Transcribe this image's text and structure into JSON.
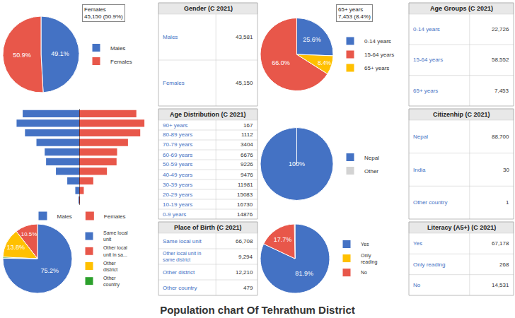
{
  "title": "Population chart Of Tehrathum District",
  "chart_data": [
    {
      "type": "pie",
      "categories": [
        "Males",
        "Females"
      ],
      "values": [
        49.1,
        50.9
      ],
      "value_labels": [
        "49.1%",
        "50.9%"
      ],
      "colors": [
        "#4472c4",
        "#e8574a"
      ],
      "legend": "right",
      "annotations": [
        "Females\n45,150 (50.9%)"
      ]
    },
    {
      "type": "table",
      "title": "Gender (C 2021)",
      "categories": [
        "Males",
        "Females"
      ],
      "values": [
        43581,
        45150
      ],
      "value_labels": [
        "43,581",
        "45,150"
      ]
    },
    {
      "type": "pie",
      "categories": [
        "0-14 years",
        "15-64 years",
        "65+ years"
      ],
      "values": [
        25.6,
        66.0,
        8.4
      ],
      "value_labels": [
        "25.6%",
        "66.0%",
        "8.4%"
      ],
      "colors": [
        "#4472c4",
        "#e8574a",
        "#ffc000"
      ],
      "legend": "right",
      "annotations": [
        "65+ years\n7,453 (8.4%)"
      ]
    },
    {
      "type": "table",
      "title": "Age Groups (C 2021)",
      "categories": [
        "0-14 years",
        "15-64 years",
        "65+ years"
      ],
      "values": [
        22726,
        58552,
        7453
      ],
      "value_labels": [
        "22,726",
        "58,552",
        "7,453"
      ]
    },
    {
      "type": "pyramid",
      "orientation": "horizontal",
      "categories": [
        "90+ years",
        "80-89 years",
        "70-79 years",
        "60-69 years",
        "50-59 years",
        "40-49 years",
        "30-39 years",
        "20-29 years",
        "10-19 years",
        "0-9 years"
      ],
      "series": [
        {
          "name": "Males",
          "color": "#4472c4",
          "values": [
            76,
            516,
            1567,
            3050,
            4340,
            4520,
            5600,
            7100,
            8200,
            7400
          ]
        },
        {
          "name": "Females",
          "color": "#e8574a",
          "values": [
            91,
            596,
            1837,
            3626,
            4886,
            4956,
            6381,
            7983,
            8530,
            7476
          ]
        }
      ],
      "xlim": [
        0,
        10000
      ],
      "xticks": [
        0,
        5000,
        10000
      ],
      "grid": false,
      "tick_labels": false,
      "legend": "bottom"
    },
    {
      "type": "table",
      "title": "Age Distribution (C 2021)",
      "categories": [
        "90+ years",
        "80-89 years",
        "70-79 years",
        "60-69 years",
        "50-59 years",
        "40-49 years",
        "30-39 years",
        "20-29 years",
        "10-19 years",
        "0-9 years"
      ],
      "values": [
        167,
        1112,
        3404,
        6676,
        9226,
        9476,
        11981,
        15083,
        16730,
        14876
      ]
    },
    {
      "type": "pie",
      "categories": [
        "Nepal",
        "Other"
      ],
      "values": [
        100,
        0
      ],
      "value_labels": [
        "100%",
        null
      ],
      "colors": [
        "#4472c4",
        "#d3d3d3"
      ],
      "legend": "right"
    },
    {
      "type": "table",
      "title": "Citizenhip (C 2021)",
      "categories": [
        "Nepal",
        "India",
        "Other country"
      ],
      "values": [
        88700,
        30,
        1
      ],
      "value_labels": [
        "88,700",
        "30",
        "1"
      ]
    },
    {
      "type": "pie",
      "categories": [
        "Same local\nunit",
        "Other local\nunit in sa...",
        "Other\ndistrict",
        "Other\ncountry"
      ],
      "values": [
        75.2,
        10.5,
        13.8,
        0.5
      ],
      "value_labels": [
        "75.2%",
        "10.5%",
        "13.8%",
        null
      ],
      "colors": [
        "#4472c4",
        "#e8574a",
        "#ffc000",
        "#2ca02c"
      ],
      "legend": "right"
    },
    {
      "type": "table",
      "title": "Place of Birth (C 2021)",
      "categories": [
        "Same local unit",
        "Other local unit in\nsame district",
        "Other district",
        "Other country"
      ],
      "values": [
        66708,
        9294,
        12210,
        479
      ],
      "value_labels": [
        "66,708",
        "9,294",
        "12,210",
        "479"
      ]
    },
    {
      "type": "pie",
      "categories": [
        "Yes",
        "Only\nreading",
        "No"
      ],
      "values": [
        81.9,
        0.3,
        17.7
      ],
      "value_labels": [
        "81.9%",
        null,
        "17.7%"
      ],
      "colors": [
        "#4472c4",
        "#ffc000",
        "#e8574a"
      ],
      "legend": "right"
    },
    {
      "type": "table",
      "title": "Literacy (A5+) (C 2021)",
      "categories": [
        "Yes",
        "Only reading",
        "No"
      ],
      "values": [
        67178,
        268,
        14531
      ],
      "value_labels": [
        "67,178",
        "268",
        "14,531"
      ]
    }
  ]
}
